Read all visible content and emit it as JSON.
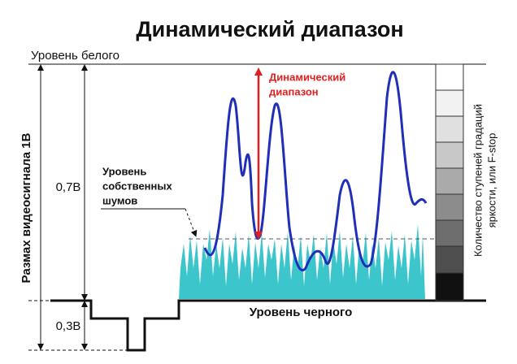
{
  "title": "Динамический диапазон",
  "white_level": "Уровень белого",
  "black_level": "Уровень черного",
  "signal_swing": "Размах видеосигнала 1В",
  "level_07": "0,7В",
  "level_03": "0,3В",
  "noise_label": [
    "Уровень",
    "собственных",
    "шумов"
  ],
  "dynamic_range_label": [
    "Динамический",
    "диапазон"
  ],
  "grayscale_label": [
    "Количество ступеней градаций",
    "яркости, или F-stop"
  ]
}
